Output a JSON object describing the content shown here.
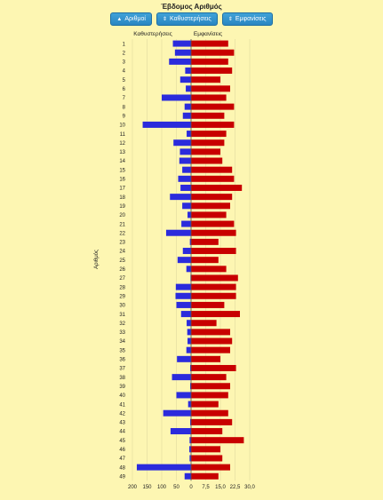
{
  "title": "Έβδομος Αριθμός",
  "buttons": [
    {
      "label": "Αριθμοί",
      "icon": "sort-up-icon"
    },
    {
      "label": "Καθυστερήσεις",
      "icon": "sort-icon"
    },
    {
      "label": "Εμφανίσεις",
      "icon": "sort-icon"
    }
  ],
  "chart_data": {
    "type": "bar",
    "orientation": "horizontal-butterfly",
    "ylabel": "Αριθμός",
    "left_header": "Καθυστερήσεις",
    "right_header": "Εμφανίσεις",
    "left_ticks": [
      "200",
      "150",
      "100",
      "50",
      "0"
    ],
    "right_ticks": [
      "0",
      "7,5",
      "15,0",
      "22,5",
      "30,0"
    ],
    "left_max": 200,
    "right_max": 30,
    "colors": {
      "delays": "#2b2bdc",
      "appearances": "#c80000"
    },
    "categories": [
      "1",
      "2",
      "3",
      "4",
      "5",
      "6",
      "7",
      "8",
      "9",
      "10",
      "11",
      "12",
      "13",
      "14",
      "15",
      "16",
      "17",
      "18",
      "19",
      "20",
      "21",
      "22",
      "23",
      "24",
      "25",
      "26",
      "27",
      "28",
      "29",
      "30",
      "31",
      "32",
      "33",
      "34",
      "35",
      "36",
      "37",
      "38",
      "39",
      "40",
      "41",
      "42",
      "43",
      "44",
      "45",
      "46",
      "47",
      "48",
      "49"
    ],
    "series": [
      {
        "name": "Καθυστερήσεις",
        "values": [
          62,
          55,
          75,
          20,
          37,
          18,
          100,
          22,
          28,
          165,
          15,
          60,
          38,
          40,
          30,
          44,
          36,
          72,
          30,
          12,
          33,
          85,
          4,
          28,
          46,
          16,
          2,
          52,
          53,
          50,
          34,
          15,
          13,
          12,
          16,
          48,
          3,
          65,
          3,
          50,
          10,
          95,
          3,
          70,
          5,
          6,
          5,
          185,
          22
        ]
      },
      {
        "name": "Εμφανίσεις",
        "values": [
          19,
          22,
          19,
          21,
          15,
          20,
          18,
          22,
          17,
          22,
          18,
          17,
          15,
          16,
          21,
          22,
          26,
          21,
          20,
          18,
          22,
          23,
          14,
          23,
          14,
          18,
          24,
          23,
          23,
          17,
          25,
          13,
          20,
          21,
          20,
          15,
          23,
          18,
          20,
          19,
          14,
          19,
          21,
          16,
          27,
          15,
          16,
          20,
          14
        ]
      }
    ]
  }
}
